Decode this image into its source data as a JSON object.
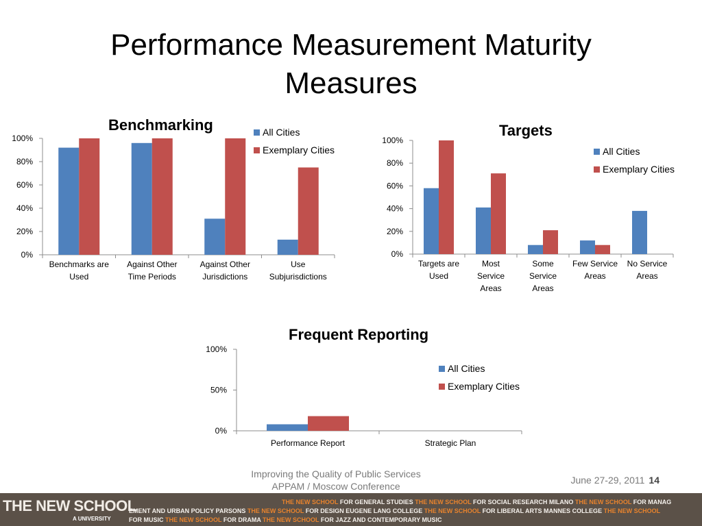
{
  "slide": {
    "title_line1": "Performance Measurement Maturity",
    "title_line2": "Measures"
  },
  "colors": {
    "all_cities": "#4f81bd",
    "exemplary_cities": "#c0504d",
    "axis": "#8c8c8c"
  },
  "chart_data": [
    {
      "type": "bar",
      "title": "Benchmarking",
      "categories": [
        [
          "Benchmarks are",
          "Used"
        ],
        [
          "Against Other",
          "Time Periods"
        ],
        [
          "Against Other",
          "Jurisdictions"
        ],
        [
          "Use",
          "Subjurisdictions"
        ]
      ],
      "series": [
        {
          "name": "All Cities",
          "values": [
            92,
            96,
            31,
            13
          ]
        },
        {
          "name": "Exemplary Cities",
          "values": [
            100,
            100,
            100,
            75
          ]
        }
      ],
      "yticks": [
        "0%",
        "20%",
        "40%",
        "60%",
        "80%",
        "100%"
      ],
      "ylim": [
        0,
        100
      ],
      "legend": "top-right"
    },
    {
      "type": "bar",
      "title": "Targets",
      "categories": [
        [
          "Targets are",
          "Used"
        ],
        [
          "Most",
          "Service",
          "Areas"
        ],
        [
          "Some",
          "Service",
          "Areas"
        ],
        [
          "Few Service",
          "Areas"
        ],
        [
          "No Service",
          "Areas"
        ]
      ],
      "series": [
        {
          "name": "All Cities",
          "values": [
            58,
            41,
            8,
            12,
            38
          ]
        },
        {
          "name": "Exemplary Cities",
          "values": [
            100,
            71,
            21,
            8,
            0
          ]
        }
      ],
      "yticks": [
        "0%",
        "20%",
        "40%",
        "60%",
        "80%",
        "100%"
      ],
      "ylim": [
        0,
        100
      ],
      "legend": "right"
    },
    {
      "type": "bar",
      "title": "Frequent Reporting",
      "categories": [
        [
          "Performance Report"
        ],
        [
          "Strategic Plan"
        ]
      ],
      "series": [
        {
          "name": "All Cities",
          "values": [
            8,
            0
          ]
        },
        {
          "name": "Exemplary Cities",
          "values": [
            18,
            0
          ]
        }
      ],
      "yticks": [
        "0%",
        "50%",
        "100%"
      ],
      "ylim": [
        0,
        100
      ],
      "legend": "right"
    }
  ],
  "footer": {
    "center_line1": "Improving the Quality of Public Services",
    "center_line2": "APPAM / Moscow Conference",
    "date": "June 27-29, 2011",
    "page": "14"
  },
  "branding": {
    "main": "THE NEW SCHOOL",
    "sub": "A UNIVERSITY",
    "line1": [
      {
        "t": "THE NEW SCHOOL",
        "hl": true
      },
      {
        "t": " FOR GENERAL STUDIES  ",
        "hl": false
      },
      {
        "t": "THE NEW SCHOOL",
        "hl": true
      },
      {
        "t": " FOR SOCIAL RESEARCH   MILANO ",
        "hl": false
      },
      {
        "t": "THE NEW SCHOOL",
        "hl": true
      },
      {
        "t": " FOR MANAG",
        "hl": false
      }
    ],
    "line2": [
      {
        "t": "EMENT AND URBAN POLICY   PARSONS ",
        "hl": false
      },
      {
        "t": "THE NEW SCHOOL",
        "hl": true
      },
      {
        "t": " FOR DESIGN   EUGENE LANG COLLEGE ",
        "hl": false
      },
      {
        "t": "THE NEW SCHOOL",
        "hl": true
      },
      {
        "t": " FOR LIBERAL ARTS   MANNES COLLEGE ",
        "hl": false
      },
      {
        "t": "THE NEW SCHOOL",
        "hl": true
      }
    ],
    "line3": [
      {
        "t": "FOR MUSIC   ",
        "hl": false
      },
      {
        "t": "THE NEW SCHOOL",
        "hl": true
      },
      {
        "t": " FOR DRAMA   ",
        "hl": false
      },
      {
        "t": "THE NEW SCHOOL",
        "hl": true
      },
      {
        "t": " FOR JAZZ AND CONTEMPORARY MUSIC",
        "hl": false
      }
    ]
  }
}
